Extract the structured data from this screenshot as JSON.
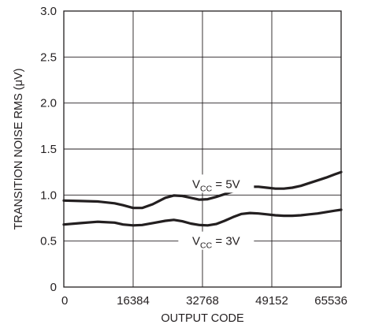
{
  "chart_data": {
    "type": "line",
    "xlabel": "OUTPUT CODE",
    "ylabel": "TRANSITION NOISE RMS (μV)",
    "xlim": [
      0,
      65536
    ],
    "ylim": [
      0,
      3.0
    ],
    "x_ticks": [
      0,
      16384,
      32768,
      49152,
      65536
    ],
    "x_tick_labels": [
      "0",
      "16384",
      "32768",
      "49152",
      "65536"
    ],
    "y_ticks": [
      0,
      0.5,
      1.0,
      1.5,
      2.0,
      2.5,
      3.0
    ],
    "y_tick_labels": [
      "0",
      "0.5",
      "1.0",
      "1.5",
      "2.0",
      "2.5",
      "3.0"
    ],
    "grid": true,
    "series": [
      {
        "x": [
          0,
          4000,
          8000,
          12000,
          14000,
          16384,
          18500,
          21000,
          24000,
          26000,
          28000,
          30000,
          32000,
          34000,
          36000,
          38000,
          40000,
          42000,
          44000,
          46000,
          48000,
          50000,
          52000,
          54000,
          56000,
          58000,
          60000,
          62000,
          64000,
          65536
        ],
        "y": [
          0.94,
          0.935,
          0.93,
          0.91,
          0.89,
          0.86,
          0.86,
          0.9,
          0.97,
          0.995,
          0.99,
          0.97,
          0.95,
          0.955,
          0.98,
          1.01,
          1.04,
          1.07,
          1.09,
          1.09,
          1.08,
          1.07,
          1.07,
          1.08,
          1.1,
          1.13,
          1.16,
          1.19,
          1.225,
          1.25
        ]
      },
      {
        "x": [
          0,
          4000,
          8000,
          12000,
          14000,
          16384,
          18500,
          21000,
          24000,
          26000,
          28000,
          30000,
          32000,
          34000,
          36000,
          38000,
          40000,
          42000,
          44000,
          46000,
          48000,
          50000,
          52000,
          54000,
          56000,
          58000,
          60000,
          62000,
          64000,
          65536
        ],
        "y": [
          0.68,
          0.695,
          0.71,
          0.7,
          0.68,
          0.67,
          0.675,
          0.695,
          0.72,
          0.73,
          0.715,
          0.69,
          0.675,
          0.67,
          0.685,
          0.72,
          0.76,
          0.795,
          0.805,
          0.8,
          0.79,
          0.78,
          0.775,
          0.775,
          0.78,
          0.79,
          0.8,
          0.815,
          0.83,
          0.84
        ]
      }
    ],
    "annotations": [
      {
        "main": "V",
        "sub": "CC",
        "rest": " = 5V",
        "x": 36000,
        "y": 1.12
      },
      {
        "main": "V",
        "sub": "CC",
        "rest": " = 3V",
        "x": 36000,
        "y": 0.5
      }
    ]
  }
}
